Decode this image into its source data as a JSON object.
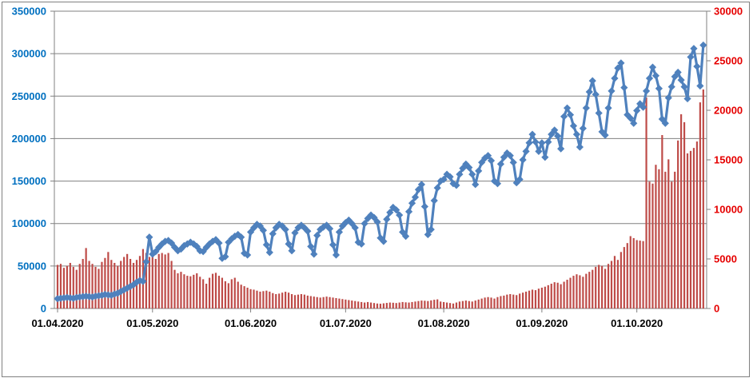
{
  "chart_data": {
    "type": "combo",
    "title": "",
    "frequency": "daily",
    "start_date": "01.04.2020",
    "end_date": "22.10.2020",
    "grid": true,
    "legend": "none",
    "x_axis": {
      "tick_labels": [
        "01.04.2020",
        "01.05.2020",
        "01.06.2020",
        "01.07.2020",
        "01.08.2020",
        "01.09.2020",
        "01.10.2020"
      ],
      "tick_day_offsets": [
        0,
        30,
        61,
        91,
        122,
        153,
        183
      ],
      "label_color": "#000000"
    },
    "left_axis": {
      "min": 0,
      "max": 350000,
      "step": 50000,
      "tick_labels": [
        "0",
        "50000",
        "100000",
        "150000",
        "200000",
        "250000",
        "300000",
        "350000"
      ],
      "label_color": "#0070C0",
      "bound_series": "daily-line-left-axis"
    },
    "right_axis": {
      "min": 0,
      "max": 30000,
      "step": 5000,
      "tick_labels": [
        "0",
        "5000",
        "10000",
        "15000",
        "20000",
        "25000",
        "30000"
      ],
      "label_color": "#E60000",
      "bound_series": "daily-bars-right-axis"
    },
    "series": [
      {
        "name": "daily-line-left-axis",
        "type": "line",
        "axis": "left",
        "color": "#4F81BD",
        "marker": "diamond",
        "values": [
          11500,
          12000,
          12500,
          13000,
          12500,
          12000,
          13000,
          13500,
          14000,
          14500,
          14000,
          13500,
          14500,
          15000,
          15500,
          16500,
          16000,
          15500,
          17000,
          18000,
          20000,
          22000,
          24000,
          26000,
          28000,
          31000,
          33000,
          32000,
          55000,
          84000,
          64000,
          67000,
          72000,
          76000,
          79000,
          80000,
          77000,
          72000,
          68000,
          70000,
          74000,
          76000,
          78000,
          76000,
          73000,
          68000,
          67000,
          72000,
          76000,
          79000,
          81000,
          77000,
          59000,
          61000,
          78000,
          82000,
          85000,
          87000,
          84000,
          65000,
          63000,
          90000,
          95000,
          99000,
          97000,
          92000,
          75000,
          66000,
          88000,
          95000,
          99000,
          97000,
          93000,
          76000,
          68000,
          89000,
          95000,
          98000,
          95000,
          91000,
          73000,
          64000,
          86000,
          93000,
          96000,
          98000,
          94000,
          75000,
          63000,
          90000,
          97000,
          101000,
          104000,
          100000,
          95000,
          78000,
          76000,
          100000,
          106000,
          110000,
          107000,
          102000,
          83000,
          79000,
          105000,
          113000,
          119000,
          116000,
          110000,
          90000,
          85000,
          114000,
          124000,
          131000,
          140000,
          146000,
          120000,
          87000,
          93000,
          127000,
          142000,
          150000,
          152000,
          158000,
          155000,
          147000,
          145000,
          158000,
          165000,
          170000,
          166000,
          158000,
          146000,
          162000,
          172000,
          177000,
          180000,
          174000,
          150000,
          147000,
          170000,
          178000,
          183000,
          180000,
          172000,
          148000,
          152000,
          175000,
          185000,
          195000,
          205000,
          196000,
          185000,
          195000,
          178000,
          196000,
          205000,
          210000,
          203000,
          188000,
          226000,
          236000,
          228000,
          215000,
          205000,
          190000,
          212000,
          236000,
          255000,
          268000,
          252000,
          230000,
          208000,
          204000,
          236000,
          256000,
          271000,
          283000,
          289000,
          260000,
          228000,
          224000,
          218000,
          233000,
          241000,
          237000,
          256000,
          271000,
          284000,
          274000,
          259000,
          223000,
          218000,
          248000,
          261000,
          273000,
          278000,
          269000,
          261000,
          247000,
          296000,
          306000,
          285000,
          262000,
          310000
        ]
      },
      {
        "name": "daily-bars-right-axis",
        "type": "bar",
        "axis": "right",
        "color": "#BE4B48",
        "values": [
          4400,
          4500,
          4100,
          4300,
          4600,
          4200,
          3900,
          4500,
          5000,
          6100,
          4800,
          4500,
          4200,
          4000,
          4700,
          5100,
          5700,
          4900,
          4600,
          4300,
          4800,
          5200,
          5500,
          5000,
          4600,
          4900,
          5300,
          6000,
          5600,
          5200,
          5400,
          5000,
          5500,
          5600,
          5450,
          5600,
          4800,
          3900,
          3550,
          3700,
          3450,
          3300,
          3250,
          3400,
          3550,
          3200,
          2950,
          2500,
          3100,
          3500,
          3600,
          3300,
          3100,
          2750,
          2550,
          2950,
          3100,
          2700,
          2400,
          2250,
          2100,
          1950,
          1900,
          1800,
          1700,
          1750,
          1800,
          1700,
          1550,
          1450,
          1500,
          1600,
          1690,
          1600,
          1450,
          1350,
          1400,
          1450,
          1400,
          1300,
          1250,
          1200,
          1150,
          1100,
          1150,
          1200,
          1150,
          1100,
          1050,
          1000,
          950,
          900,
          850,
          800,
          750,
          700,
          650,
          600,
          650,
          600,
          550,
          500,
          480,
          520,
          560,
          600,
          580,
          550,
          600,
          650,
          620,
          600,
          650,
          700,
          750,
          800,
          780,
          750,
          820,
          880,
          920,
          700,
          650,
          600,
          550,
          500,
          600,
          700,
          750,
          800,
          750,
          700,
          800,
          900,
          1000,
          1100,
          1150,
          1100,
          1000,
          1150,
          1250,
          1300,
          1400,
          1450,
          1400,
          1350,
          1500,
          1600,
          1700,
          1800,
          1900,
          1850,
          2000,
          2100,
          2200,
          2350,
          2500,
          2650,
          2600,
          2450,
          2700,
          2900,
          3100,
          3300,
          3450,
          3350,
          3200,
          3500,
          3700,
          3900,
          4200,
          4400,
          4300,
          4000,
          4500,
          4800,
          5300,
          4900,
          5700,
          6200,
          6600,
          7300,
          7100,
          6900,
          6850,
          6800,
          21300,
          12800,
          12600,
          14500,
          14050,
          17500,
          13800,
          15050,
          12800,
          13800,
          16950,
          19600,
          18800,
          15650,
          15900,
          16200,
          16850,
          20800,
          22100
        ]
      }
    ],
    "style": {
      "gridline_color": "#808080",
      "axis_color": "#808080",
      "background": "#ffffff",
      "frame_border_color": "#808080"
    }
  }
}
